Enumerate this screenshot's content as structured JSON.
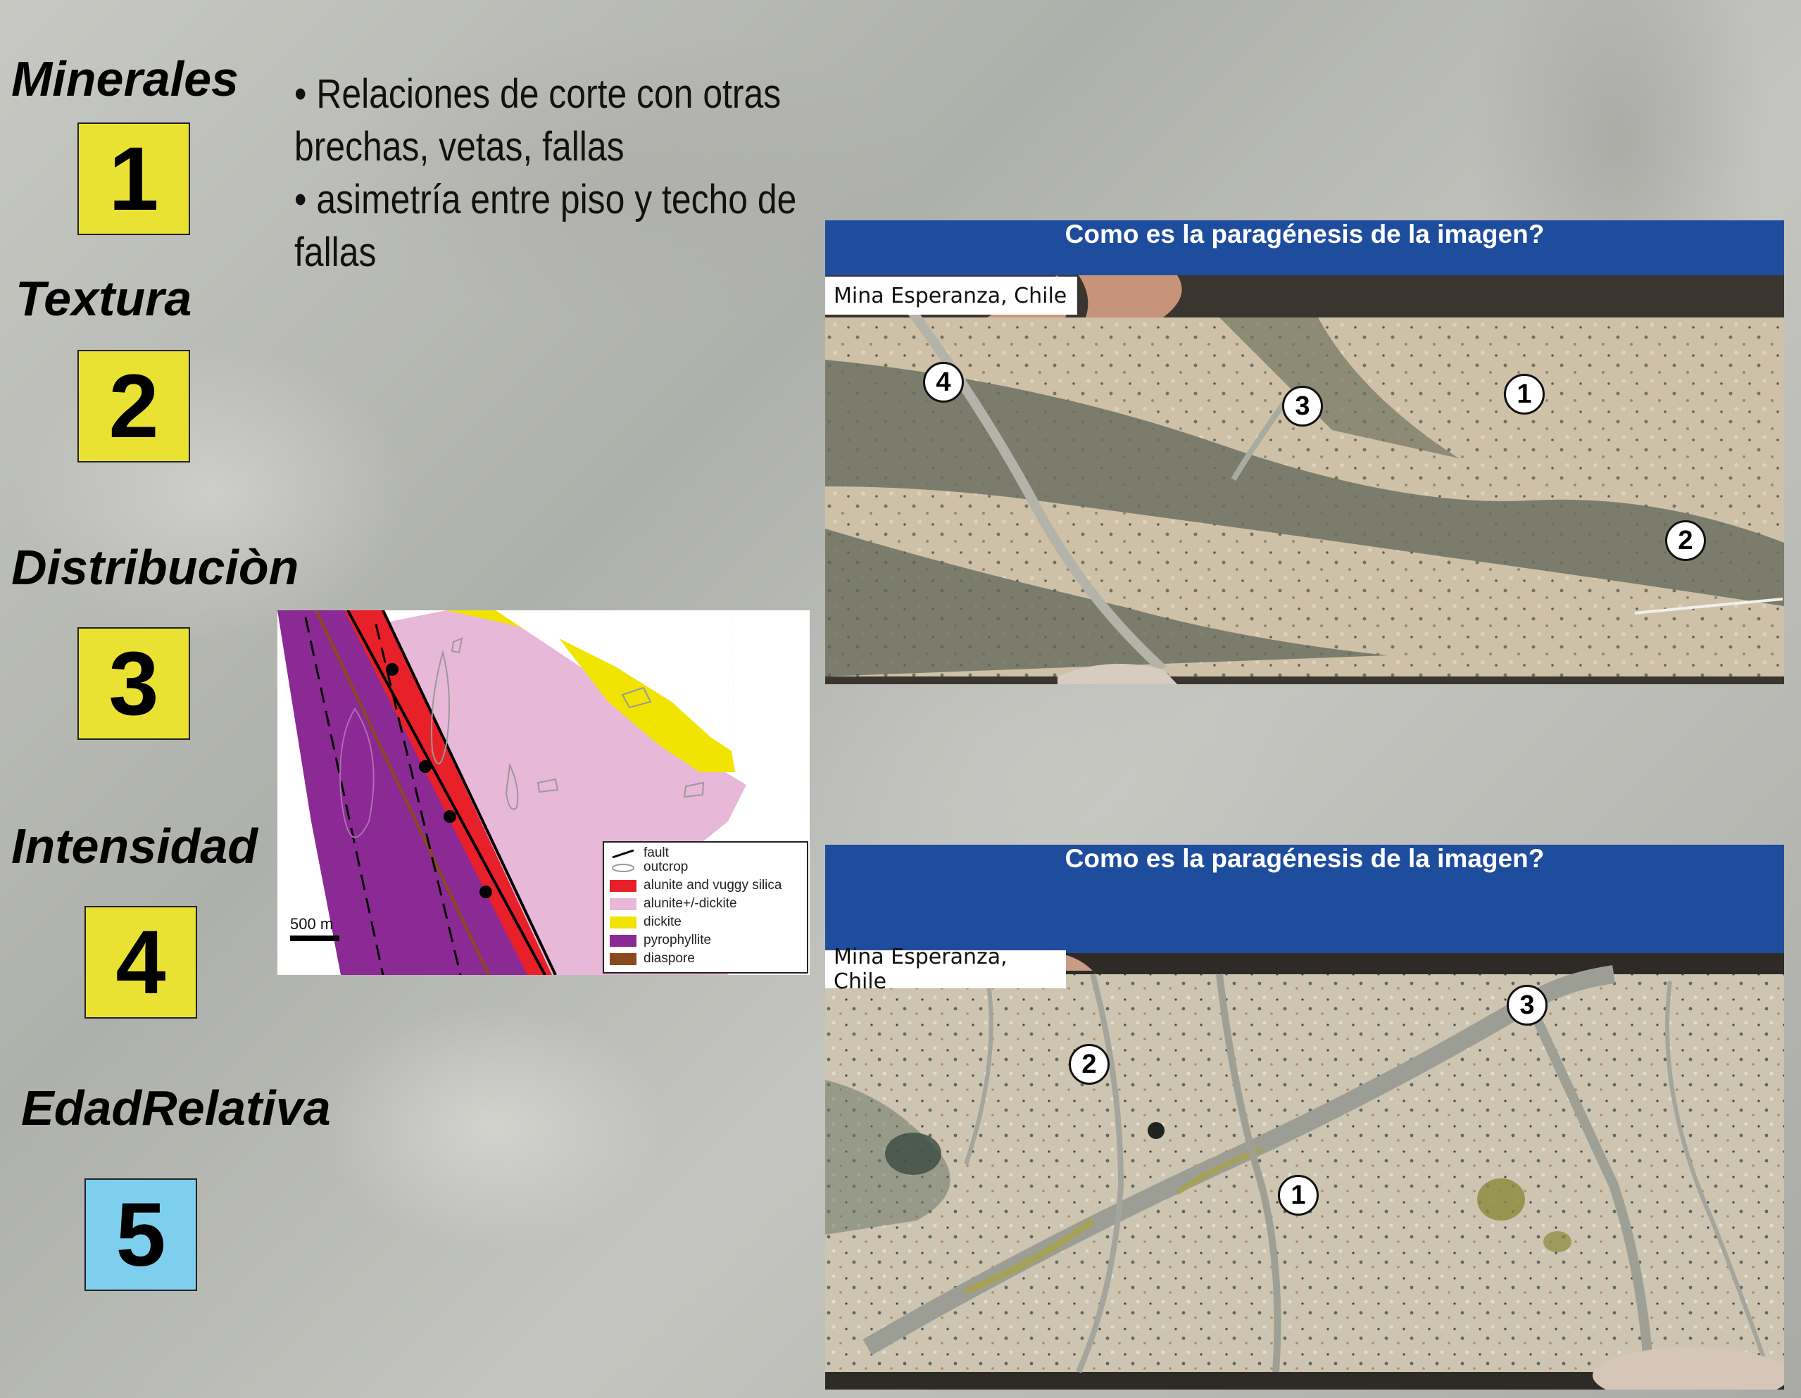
{
  "categories": [
    {
      "label": "Minerales",
      "number": "1"
    },
    {
      "label": "Textura",
      "number": "2"
    },
    {
      "label": "Distribuciòn",
      "number": "3"
    },
    {
      "label": "Intensidad",
      "number": "4"
    },
    {
      "label": "EdadRelativa",
      "number": "5"
    }
  ],
  "colors": {
    "box_yellow": "#e9e233",
    "box_blue": "#7ecfee",
    "header_blue": "#1f4d9e"
  },
  "bullets": [
    "• Relaciones de corte con otras",
    "brechas, vetas, fallas",
    "• asimetría entre piso y techo de",
    "fallas"
  ],
  "map": {
    "scale": "500 m",
    "legend": [
      {
        "label": "fault",
        "color": "#000000"
      },
      {
        "label": "outcrop",
        "color": "#ffffff"
      },
      {
        "label": "alunite and vuggy silica",
        "color": "#e8202a"
      },
      {
        "label": "alunite+/-dickite",
        "color": "#e8b8d8"
      },
      {
        "label": "dickite",
        "color": "#f0e400"
      },
      {
        "label": "pyrophyllite",
        "color": "#8b2a94"
      },
      {
        "label": "diaspore",
        "color": "#8a4a1e"
      }
    ]
  },
  "panels": [
    {
      "header": "Como es la paragénesis de la imagen?",
      "caption": "Mina Esperanza, Chile",
      "markers": [
        "4",
        "3",
        "1",
        "2"
      ]
    },
    {
      "header": "Como es la paragénesis de la imagen?",
      "caption": "Mina Esperanza, Chile",
      "markers": [
        "3",
        "2",
        "1"
      ]
    }
  ]
}
